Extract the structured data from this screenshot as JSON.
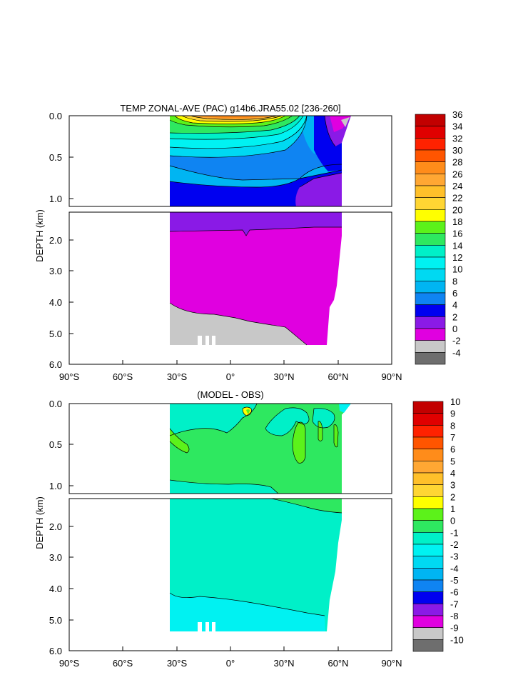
{
  "chart_data": [
    {
      "type": "heatmap",
      "title": "TEMP ZONAL-AVE (PAC) g14b6.JRA55.02 [236-260]",
      "ylabel": "DEPTH (km)",
      "xlim": [
        -90,
        90
      ],
      "ylim": [
        6.0,
        0.0
      ],
      "x_ticks": [
        "90°S",
        "60°S",
        "30°S",
        "0°",
        "30°N",
        "60°N",
        "90°N"
      ],
      "y_ticks_upper": [
        "0.0",
        "0.5",
        "1.0"
      ],
      "y_ticks_lower": [
        "2.0",
        "3.0",
        "4.0",
        "5.0",
        "6.0"
      ],
      "upper_panel_depth_range_km": [
        0.0,
        1.1
      ],
      "lower_panel_depth_range_km": [
        1.2,
        6.0
      ],
      "data_extent_lat": [
        -35,
        63
      ],
      "colorbar_levels": [
        "36",
        "34",
        "32",
        "30",
        "28",
        "26",
        "24",
        "22",
        "20",
        "18",
        "16",
        "14",
        "12",
        "10",
        "8",
        "6",
        "4",
        "2",
        "0",
        "-2",
        "-4"
      ],
      "colorbar_colors": [
        "#c20000",
        "#e00000",
        "#ff2200",
        "#ff5500",
        "#ff8c1a",
        "#ffa733",
        "#ffc02a",
        "#ffd633",
        "#ffff00",
        "#5cf21a",
        "#2ee860",
        "#00f0c8",
        "#00f2f2",
        "#00d9f2",
        "#00b5f2",
        "#0f84f2",
        "#0000f0",
        "#8a1ae6",
        "#e000e0",
        "#c8c8c8",
        "#6e6e6e"
      ]
    },
    {
      "type": "heatmap",
      "title": "(MODEL - OBS)",
      "ylabel": "DEPTH (km)",
      "xlim": [
        -90,
        90
      ],
      "ylim": [
        6.0,
        0.0
      ],
      "x_ticks": [
        "90°S",
        "60°S",
        "30°S",
        "0°",
        "30°N",
        "60°N",
        "90°N"
      ],
      "y_ticks_upper": [
        "0.0",
        "0.5",
        "1.0"
      ],
      "y_ticks_lower": [
        "2.0",
        "3.0",
        "4.0",
        "5.0",
        "6.0"
      ],
      "colorbar_levels": [
        "10",
        "9",
        "8",
        "7",
        "6",
        "5",
        "4",
        "3",
        "2",
        "1",
        "0",
        "-1",
        "-2",
        "-3",
        "-4",
        "-5",
        "-6",
        "-7",
        "-8",
        "-9",
        "-10"
      ],
      "colorbar_colors": [
        "#c20000",
        "#e00000",
        "#ff2200",
        "#ff5500",
        "#ff8c1a",
        "#ffa733",
        "#ffc02a",
        "#ffd633",
        "#ffff00",
        "#5cf21a",
        "#2ee860",
        "#00f0c8",
        "#00f2f2",
        "#00d9f2",
        "#00b5f2",
        "#0f84f2",
        "#0000f0",
        "#8a1ae6",
        "#e000e0",
        "#c8c8c8",
        "#6e6e6e"
      ]
    }
  ]
}
